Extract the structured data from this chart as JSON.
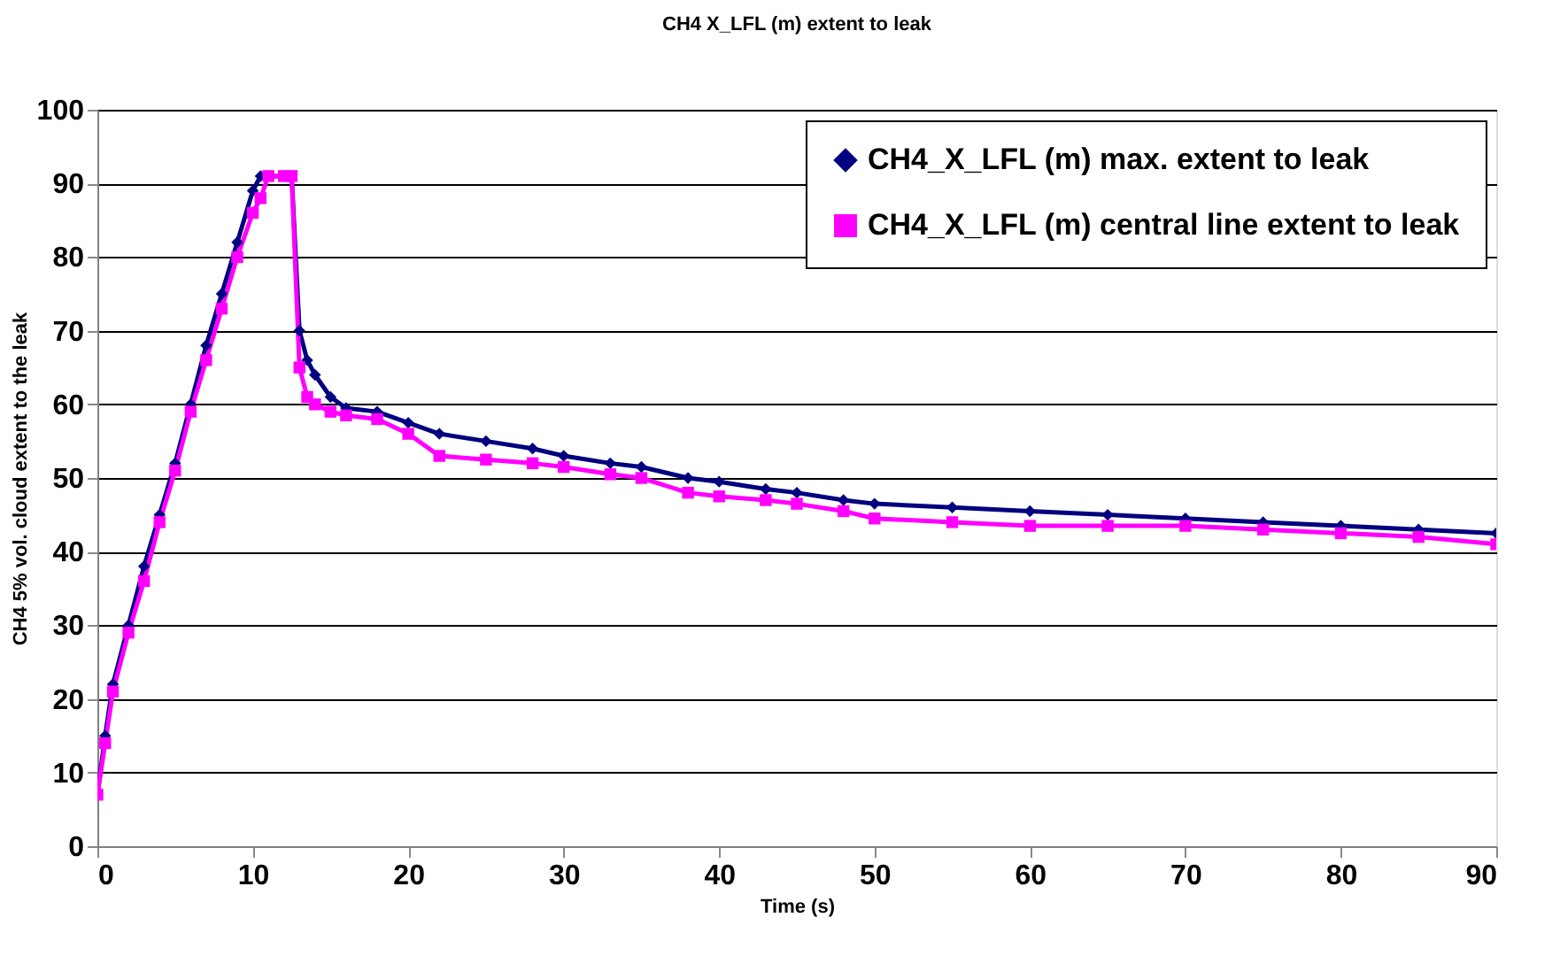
{
  "chart_data": {
    "type": "line",
    "title": "CH4 X_LFL (m) extent to leak",
    "xlabel": "Time (s)",
    "ylabel": "CH4 5% vol. cloud extent to the leak",
    "xlim": [
      0,
      90
    ],
    "xticks": [
      0,
      10,
      20,
      30,
      40,
      50,
      60,
      70,
      80,
      90
    ],
    "ylim": [
      0,
      100
    ],
    "yticks": [
      0,
      10,
      20,
      30,
      40,
      50,
      60,
      70,
      80,
      90,
      100
    ],
    "grid": "y",
    "legend": "top right",
    "series": [
      {
        "name": "CH4_X_LFL (m) max. extent to leak",
        "color": "#000080",
        "marker": "diamond",
        "x": [
          0,
          0.5,
          1,
          2,
          3,
          4,
          5,
          6,
          7,
          8,
          9,
          10,
          10.5,
          11,
          12,
          12.5,
          13,
          13.5,
          14,
          15,
          16,
          18,
          20,
          22,
          25,
          28,
          30,
          33,
          35,
          38,
          40,
          43,
          45,
          48,
          50,
          55,
          60,
          65,
          70,
          75,
          80,
          85,
          90
        ],
        "values": [
          7,
          15,
          22,
          30,
          38,
          45,
          52,
          60,
          68,
          75,
          82,
          89,
          91,
          91,
          91,
          91,
          70,
          66,
          64,
          61,
          59.5,
          59,
          57.5,
          56,
          55,
          54,
          53,
          52,
          51.5,
          50,
          49.5,
          48.5,
          48,
          47,
          46.5,
          46,
          45.5,
          45,
          44.5,
          44,
          43.5,
          43,
          42.5
        ]
      },
      {
        "name": "CH4_X_LFL (m) central line extent to leak",
        "color": "#ff00ff",
        "marker": "square",
        "x": [
          0,
          0.5,
          1,
          2,
          3,
          4,
          5,
          6,
          7,
          8,
          9,
          10,
          10.5,
          11,
          12,
          12.5,
          13,
          13.5,
          14,
          15,
          16,
          18,
          20,
          22,
          25,
          28,
          30,
          33,
          35,
          38,
          40,
          43,
          45,
          48,
          50,
          55,
          60,
          65,
          70,
          75,
          80,
          85,
          90
        ],
        "values": [
          7,
          14,
          21,
          29,
          36,
          44,
          51,
          59,
          66,
          73,
          80,
          86,
          88,
          91,
          91,
          91,
          65,
          61,
          60,
          59,
          58.5,
          58,
          56,
          53,
          52.5,
          52,
          51.5,
          50.5,
          50,
          48,
          47.5,
          47,
          46.5,
          45.5,
          44.5,
          44,
          43.5,
          43.5,
          43.5,
          43,
          42.5,
          42,
          41
        ]
      }
    ]
  }
}
